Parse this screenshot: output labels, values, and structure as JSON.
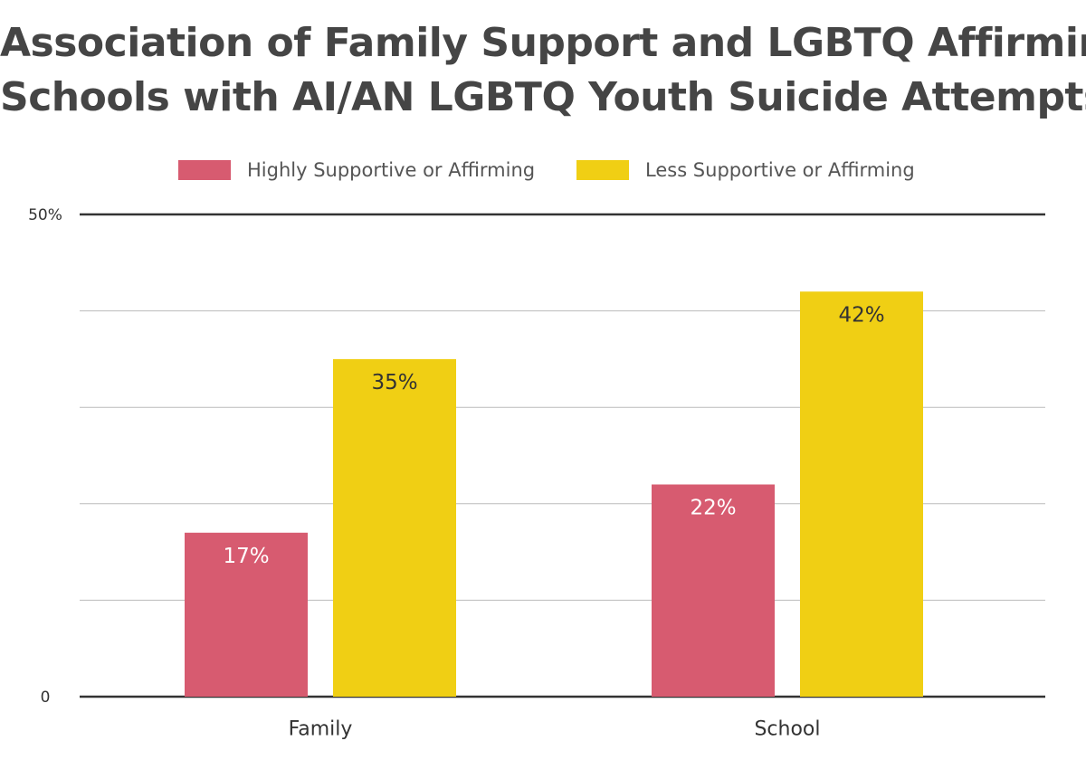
{
  "chart_data": {
    "type": "bar",
    "title_lines": [
      "Association of Family Support and LGBTQ Affirming",
      "Schools with AI/AN LGBTQ Youth Suicide Attempts"
    ],
    "categories": [
      "Family",
      "School"
    ],
    "series": [
      {
        "name": "Highly Supportive or Affirming",
        "color": "#d75b70",
        "label_color": "#ffffff",
        "values": [
          17,
          22
        ],
        "labels": [
          "17%",
          "22%"
        ]
      },
      {
        "name": "Less Supportive or Affirming",
        "color": "#f0cf14",
        "label_color": "#333333",
        "values": [
          35,
          42
        ],
        "labels": [
          "35%",
          "42%"
        ]
      }
    ],
    "ylim": [
      0,
      50
    ],
    "yticks": [
      {
        "value": 0,
        "label": "0"
      },
      {
        "value": 10,
        "label": ""
      },
      {
        "value": 20,
        "label": ""
      },
      {
        "value": 30,
        "label": ""
      },
      {
        "value": 40,
        "label": ""
      },
      {
        "value": 50,
        "label": "50%"
      }
    ],
    "legend_position": "top-center",
    "grid": true
  }
}
